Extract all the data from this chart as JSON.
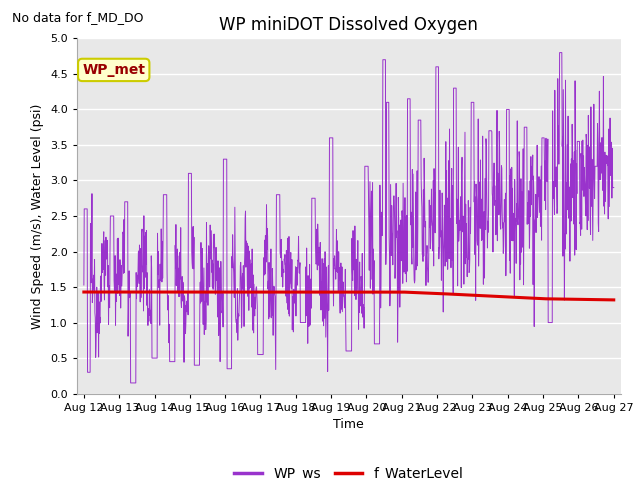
{
  "title": "WP miniDOT Dissolved Oxygen",
  "top_left_text": "No data for f_MD_DO",
  "xlabel": "Time",
  "ylabel": "Wind Speed (m/s), Water Level (psi)",
  "ylim": [
    0.0,
    5.0
  ],
  "yticks": [
    0.0,
    0.5,
    1.0,
    1.5,
    2.0,
    2.5,
    3.0,
    3.5,
    4.0,
    4.5,
    5.0
  ],
  "xticklabels": [
    "Aug 12",
    "Aug 13",
    "Aug 14",
    "Aug 15",
    "Aug 16",
    "Aug 17",
    "Aug 18",
    "Aug 19",
    "Aug 20",
    "Aug 21",
    "Aug 22",
    "Aug 23",
    "Aug 24",
    "Aug 25",
    "Aug 26",
    "Aug 27"
  ],
  "bg_color": "#e8e8e8",
  "fig_color": "#ffffff",
  "wp_ws_color": "#9933cc",
  "f_wl_color": "#dd0000",
  "annotation_box_facecolor": "#ffffcc",
  "annotation_box_edgecolor": "#cccc00",
  "annotation_text": "WP_met",
  "annotation_text_color": "#990000",
  "legend_labels": [
    "WP_ws",
    "f_WaterLevel"
  ],
  "legend_colors": [
    "#9933cc",
    "#dd0000"
  ],
  "grid_color": "#ffffff",
  "title_fontsize": 12,
  "axis_fontsize": 9,
  "tick_fontsize": 8
}
